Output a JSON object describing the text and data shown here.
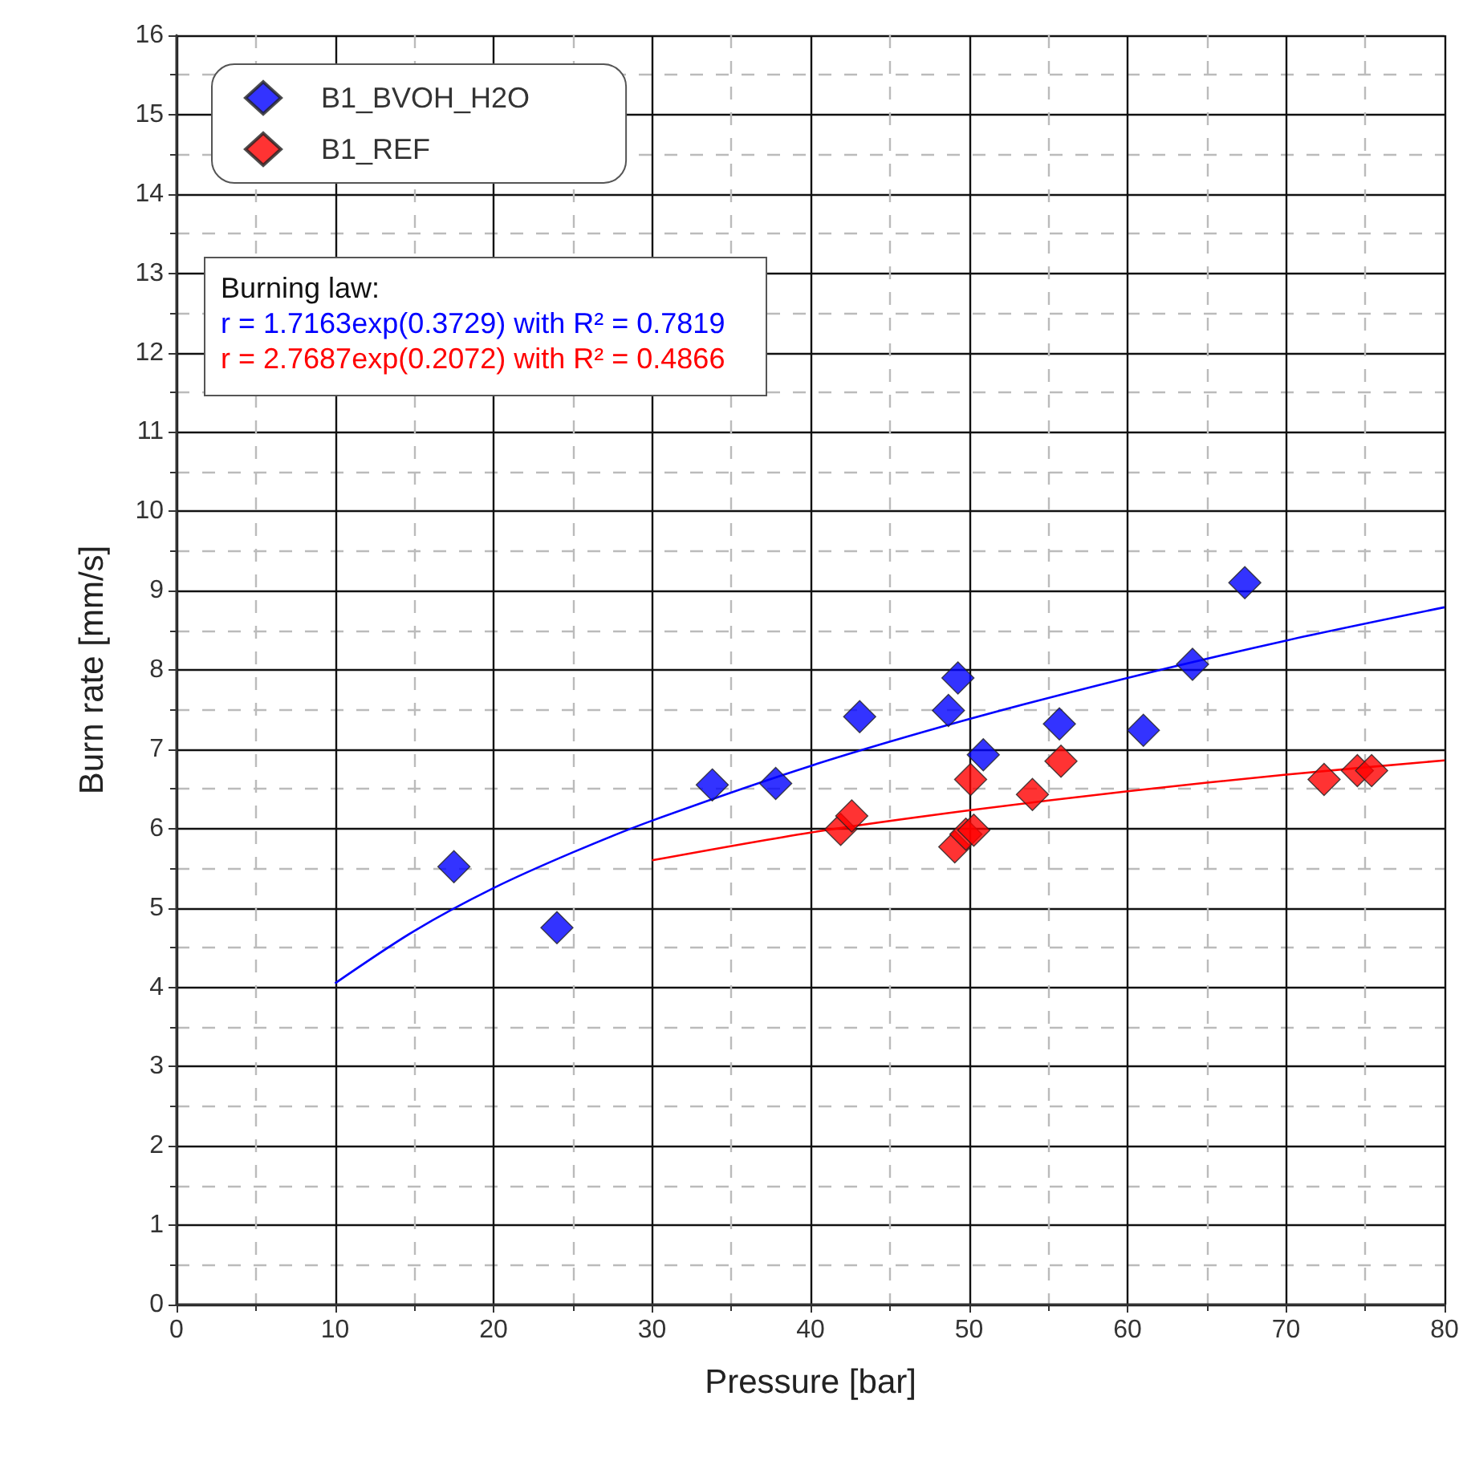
{
  "chart_data": {
    "type": "scatter",
    "xlabel": "Pressure [bar]",
    "ylabel": "Burn rate [mm/s]",
    "xlim": [
      0,
      80
    ],
    "xticks": [
      0,
      10,
      20,
      30,
      40,
      50,
      60,
      70,
      80
    ],
    "ylim": [
      0,
      16
    ],
    "yticks": [
      0,
      1,
      2,
      3,
      4,
      5,
      6,
      7,
      8,
      9,
      10,
      11,
      12,
      13,
      14,
      15,
      16
    ],
    "grid": true,
    "legend": "top left",
    "marker": "diamond",
    "annotations": [
      "Burning law:",
      "r = 1.7163exp(0.3729) with R² = 0.7819",
      "r = 2.7687exp(0.2072) with R² = 0.4866"
    ],
    "series": [
      {
        "name": "B1_BVOH_H2O",
        "color": "#0000ff",
        "x": [
          17.5,
          24,
          33.8,
          37.8,
          43.1,
          48.7,
          49.3,
          50.9,
          55.7,
          61,
          64.1,
          67.4
        ],
        "values": [
          5.52,
          4.75,
          6.55,
          6.57,
          7.41,
          7.49,
          7.9,
          6.93,
          7.32,
          7.24,
          8.07,
          9.1
        ]
      },
      {
        "name": "B1_REF",
        "color": "#ff0000",
        "x": [
          41.9,
          42.6,
          49.1,
          49.8,
          50.3,
          50.1,
          54,
          55.8,
          72.4,
          74.5,
          75.4
        ],
        "values": [
          5.99,
          6.16,
          5.77,
          5.93,
          5.98,
          6.62,
          6.43,
          6.85,
          6.62,
          6.73,
          6.73
        ]
      },
      {
        "type": "line",
        "color": "#0000ff",
        "marker": "none",
        "x": [
          10,
          15,
          20,
          25,
          30,
          40,
          50,
          60,
          70,
          80
        ],
        "values": [
          4.05,
          4.71,
          5.25,
          5.7,
          6.1,
          6.79,
          7.38,
          7.9,
          8.37,
          8.79
        ]
      },
      {
        "type": "line",
        "color": "#ff0000",
        "marker": "none",
        "x": [
          30,
          40,
          50,
          60,
          70,
          80
        ],
        "values": [
          5.6,
          5.95,
          6.23,
          6.47,
          6.68,
          6.86
        ]
      }
    ]
  }
}
